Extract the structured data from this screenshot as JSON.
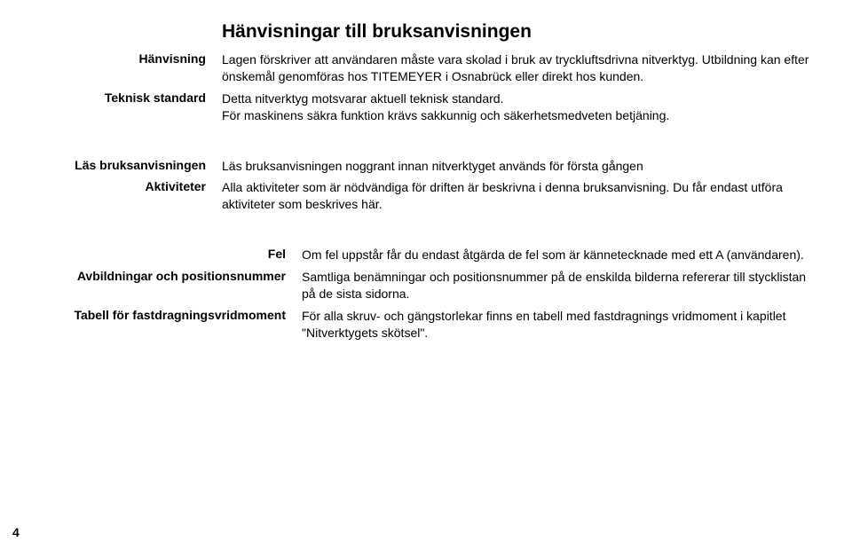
{
  "title": "Hänvisningar till bruksanvisningen",
  "rows": {
    "hanvisning": {
      "label": "Hänvisning",
      "body": "Lagen förskriver att användaren måste vara skolad i bruk av tryckluftsdrivna nitverktyg. Utbildning kan efter önskemål genomföras hos TITEMEYER i Osnabrück eller direkt hos kunden."
    },
    "teknisk": {
      "label": "Teknisk standard",
      "body1": "Detta nitverktyg motsvarar aktuell teknisk standard.",
      "body2": "För maskinens säkra funktion krävs sakkunnig och säkerhetsmedveten betjäning."
    },
    "las": {
      "label": "Läs bruksanvisningen",
      "body": "Läs bruksanvisningen noggrant innan nitverktyget används för första gången"
    },
    "aktiviteter": {
      "label": "Aktiviteter",
      "body": "Alla aktiviteter som är nödvändiga för driften är beskrivna i denna bruksanvisning. Du får endast utföra aktiviteter som beskrives här."
    },
    "fel": {
      "label": "Fel",
      "body": "Om fel uppstår får du endast åtgärda de fel som är kännetecknade med ett A (användaren)."
    },
    "avbild": {
      "label": "Avbildningar och positionsnummer",
      "body": "Samtliga benämningar och positionsnummer på de enskilda bilderna refererar till stycklistan på de sista sidorna."
    },
    "tabell": {
      "label": "Tabell för fastdragningsvridmoment",
      "body": "För alla skruv- och gängstorlekar finns en tabell med fastdragnings vridmoment i kapitlet \"Nitverktygets skötsel\"."
    }
  },
  "page_number": "4"
}
